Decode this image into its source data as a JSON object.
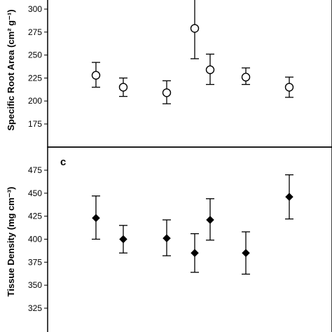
{
  "chart_data": [
    {
      "type": "scatter",
      "panel_label": "",
      "title": "",
      "ylabel": "Specific Root Area (cm² g⁻¹)",
      "xlabel": "",
      "ylim": [
        160,
        310
      ],
      "yticks": [
        "175",
        "200",
        "225",
        "250",
        "275",
        "300"
      ],
      "marker": "open-circle",
      "marker_color": "#000000",
      "points": [
        {
          "y": 228,
          "lo": 215,
          "hi": 242
        },
        {
          "y": 215,
          "lo": 205,
          "hi": 225
        },
        {
          "y": 209,
          "lo": 197,
          "hi": 222
        },
        {
          "y": 279,
          "lo": 246,
          "hi": 312
        },
        {
          "y": 234,
          "lo": 218,
          "hi": 251
        },
        {
          "y": 226,
          "lo": 218,
          "hi": 236
        },
        {
          "y": 215,
          "lo": 204,
          "hi": 226
        }
      ]
    },
    {
      "type": "scatter",
      "panel_label": "c",
      "title": "",
      "ylabel": "Tissue Density (mg cm⁻³)",
      "xlabel": "",
      "ylim": [
        305,
        490
      ],
      "yticks": [
        "325",
        "350",
        "375",
        "400",
        "425",
        "450",
        "475"
      ],
      "marker": "filled-diamond",
      "marker_color": "#000000",
      "points": [
        {
          "y": 423,
          "lo": 400,
          "hi": 447
        },
        {
          "y": 400,
          "lo": 385,
          "hi": 415
        },
        {
          "y": 401,
          "lo": 382,
          "hi": 421
        },
        {
          "y": 385,
          "lo": 364,
          "hi": 406
        },
        {
          "y": 421,
          "lo": 399,
          "hi": 444
        },
        {
          "y": 385,
          "lo": 362,
          "hi": 408
        },
        {
          "y": 446,
          "lo": 422,
          "hi": 470
        }
      ]
    }
  ]
}
